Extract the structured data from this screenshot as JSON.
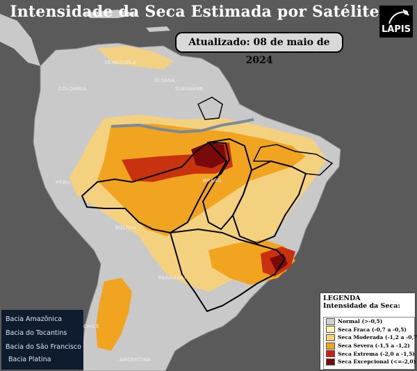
{
  "title": "Intensidade da Seca Estimada por Satélite",
  "updated": "Atualizado: 08  de maio de 2024",
  "logo": {
    "text": "LAPIS",
    "icon": "satellite-icon"
  },
  "countries": [
    "VENEZUELA",
    "COLÔMBIA",
    "GUIANA",
    "SURINAME",
    "PERU",
    "BOLÍVIA",
    "BRASIL",
    "PARAGUAI",
    "CHILE",
    "ARGENTINA"
  ],
  "basins": [
    "Bacia Amazônica",
    "Bacia do Tocantins",
    "Bacia do São Francisco",
    "Bacia Platina"
  ],
  "legend": {
    "title": "LEGENDA",
    "subtitle": "Intensidade da Seca:",
    "items": [
      {
        "label": "Normal (>-0,5)",
        "color": "#cfcfcf"
      },
      {
        "label": "Seca Fraca (-0,7 a -0,5)",
        "color": "#fff3a8"
      },
      {
        "label": "Seca Moderada (-1,2 a -0,7)",
        "color": "#f6d27a"
      },
      {
        "label": "Seca Severa (-1,5 a -1,2)",
        "color": "#f0a420"
      },
      {
        "label": "Seca Extrema (-2,0 a -1,5)",
        "color": "#d11a10"
      },
      {
        "label": "Seca Excepcional (<=-2,0)",
        "color": "#7a0a0a"
      }
    ]
  },
  "colors": {
    "ocean": "#5a5a5a",
    "land": "#c9c9c9",
    "basin_border": "#000000",
    "river": "#7a8a99"
  }
}
